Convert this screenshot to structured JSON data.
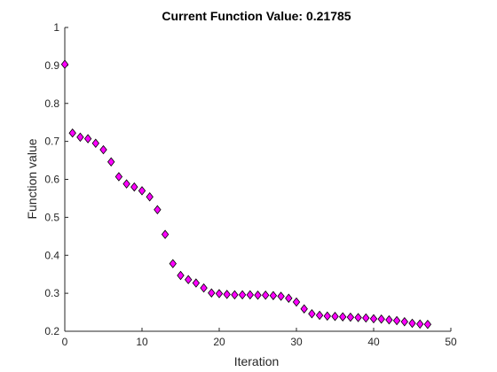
{
  "chart_data": {
    "type": "scatter",
    "title": "Current Function Value: 0.21785",
    "xlabel": "Iteration",
    "ylabel": "Function value",
    "xlim": [
      0,
      50
    ],
    "ylim": [
      0.2,
      1
    ],
    "x_ticks": [
      "0",
      "10",
      "20",
      "30",
      "40",
      "50"
    ],
    "y_ticks": [
      "0.2",
      "0.3",
      "0.4",
      "0.5",
      "0.6",
      "0.7",
      "0.8",
      "0.9",
      "1"
    ],
    "grid": false,
    "legend": "none",
    "marker": "diamond",
    "marker_color": "#ff00ff",
    "marker_edge_color": "#000000",
    "series": [
      {
        "x": [
          0,
          1,
          2,
          3,
          4,
          5,
          6,
          7,
          8,
          9,
          10,
          11,
          12,
          13,
          14,
          15,
          16,
          17,
          18,
          19,
          20,
          21,
          22,
          23,
          24,
          25,
          26,
          27,
          28,
          29,
          30,
          31,
          32,
          33,
          34,
          35,
          36,
          37,
          38,
          39,
          40,
          41,
          42,
          43,
          44,
          45,
          46,
          47
        ],
        "values": [
          0.903,
          0.722,
          0.711,
          0.707,
          0.695,
          0.678,
          0.646,
          0.607,
          0.588,
          0.58,
          0.57,
          0.554,
          0.52,
          0.455,
          0.378,
          0.347,
          0.336,
          0.327,
          0.314,
          0.301,
          0.299,
          0.297,
          0.296,
          0.296,
          0.296,
          0.295,
          0.295,
          0.294,
          0.292,
          0.287,
          0.277,
          0.259,
          0.246,
          0.242,
          0.24,
          0.239,
          0.238,
          0.237,
          0.236,
          0.235,
          0.233,
          0.232,
          0.23,
          0.228,
          0.225,
          0.221,
          0.219,
          0.218
        ]
      }
    ]
  }
}
